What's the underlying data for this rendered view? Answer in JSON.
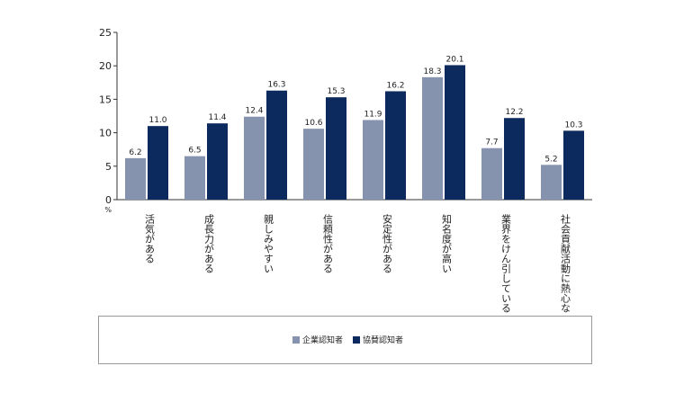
{
  "chart_data": {
    "type": "bar",
    "categories": [
      "活気がある",
      "成長力がある",
      "親しみやすい",
      "信頼性がある",
      "安定性がある",
      "知名度が高い",
      "業界をけん引している",
      "社会貢献活動に熱心な"
    ],
    "series": [
      {
        "name": "企業認知者",
        "color": "#8593ae",
        "values": [
          6.2,
          6.5,
          12.4,
          10.6,
          11.9,
          18.3,
          7.7,
          5.2
        ]
      },
      {
        "name": "協賛認知者",
        "color": "#0d2a5e",
        "values": [
          11.0,
          11.4,
          16.3,
          15.3,
          16.2,
          20.1,
          12.2,
          10.3
        ]
      }
    ],
    "y_ticks": [
      0,
      5,
      10,
      15,
      20,
      25
    ],
    "ylim": [
      0,
      25
    ],
    "yunit": "%",
    "legend_position": "bottom"
  }
}
